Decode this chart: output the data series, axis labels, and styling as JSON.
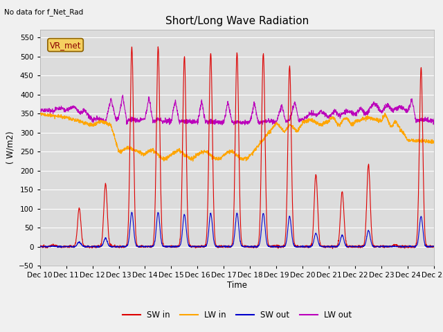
{
  "title": "Short/Long Wave Radiation",
  "xlabel": "Time",
  "ylabel": "( W/m2)",
  "ylim": [
    -50,
    570
  ],
  "yticks": [
    -50,
    0,
    50,
    100,
    150,
    200,
    250,
    300,
    350,
    400,
    450,
    500,
    550
  ],
  "background_color": "#dcdcdc",
  "plot_bg_color": "#dcdcdc",
  "fig_bg_color": "#f0f0f0",
  "grid_color": "#ffffff",
  "colors": {
    "SW_in": "#dd0000",
    "LW_in": "#ffa500",
    "SW_out": "#0000cc",
    "LW_out": "#bb00bb"
  },
  "top_left_text": "No data for f_Net_Rad",
  "box_label": "VR_met",
  "legend": [
    "SW in",
    "LW in",
    "SW out",
    "LW out"
  ],
  "n_days": 15,
  "start_day": 10
}
